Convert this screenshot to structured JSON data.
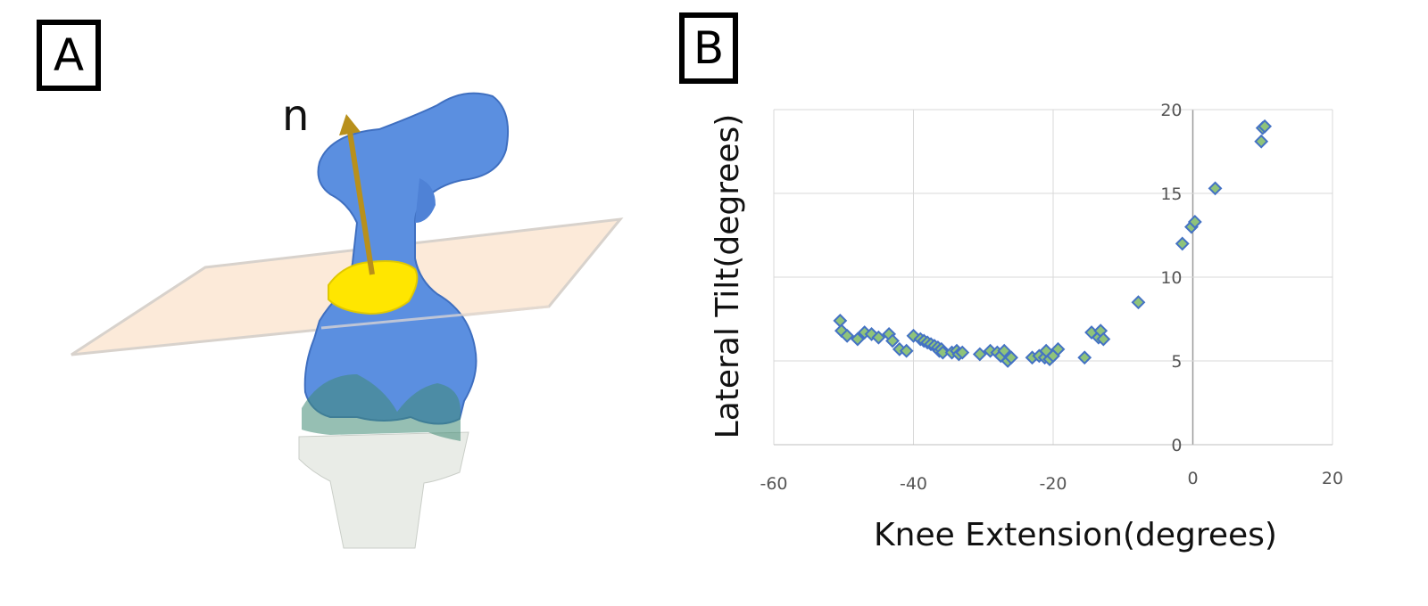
{
  "panels": {
    "a_label": "A",
    "b_label": "B"
  },
  "illustration": {
    "vector_label": "n",
    "colors": {
      "bone": "#5b8fe0",
      "patella_highlight": "#ffe600",
      "plane": "#fbe6d2",
      "vector": "#b8901c",
      "tibia": "#e8ece6",
      "cartilage": "#3f8a74"
    }
  },
  "chart_data": {
    "type": "scatter",
    "xlabel": "Knee Extension(degrees)",
    "ylabel": "Lateral Tilt(degrees)",
    "xlim": [
      -60,
      20
    ],
    "ylim": [
      0,
      20
    ],
    "x_ticks": [
      "-60",
      "-40",
      "-20",
      "0",
      "20"
    ],
    "y_ticks": [
      "0",
      "5",
      "10",
      "15",
      "20"
    ],
    "grid": true,
    "marker": "diamond",
    "marker_fill": "#8fc37a",
    "marker_edge": "#4472c4",
    "x": [
      -50.5,
      -50.3,
      -49.5,
      -48,
      -47,
      -46,
      -45,
      -43.5,
      -43,
      -42,
      -41,
      -40,
      -39,
      -38.5,
      -38,
      -37.5,
      -37,
      -36.5,
      -36.3,
      -36,
      -35.8,
      -34.5,
      -33.8,
      -33.5,
      -33,
      -30.5,
      -29,
      -28,
      -27.5,
      -27,
      -26.5,
      -26,
      -23,
      -22,
      -21.2,
      -21,
      -20.5,
      -20,
      -19.3,
      -15.5,
      -14.5,
      -13.5,
      -13.2,
      -12.8,
      -7.8,
      -1.5,
      -0.2,
      0.3,
      3.2,
      9.8,
      10,
      10.3
    ],
    "y": [
      7.4,
      6.8,
      6.5,
      6.3,
      6.7,
      6.6,
      6.4,
      6.6,
      6.2,
      5.7,
      5.6,
      6.5,
      6.3,
      6.2,
      6.1,
      6.0,
      5.9,
      5.8,
      5.6,
      5.7,
      5.5,
      5.5,
      5.6,
      5.4,
      5.5,
      5.4,
      5.6,
      5.5,
      5.3,
      5.6,
      5.0,
      5.2,
      5.2,
      5.3,
      5.2,
      5.6,
      5.1,
      5.3,
      5.7,
      5.2,
      6.7,
      6.4,
      6.8,
      6.3,
      8.5,
      12.0,
      13.0,
      13.3,
      15.3,
      18.1,
      18.9,
      19.0
    ]
  }
}
